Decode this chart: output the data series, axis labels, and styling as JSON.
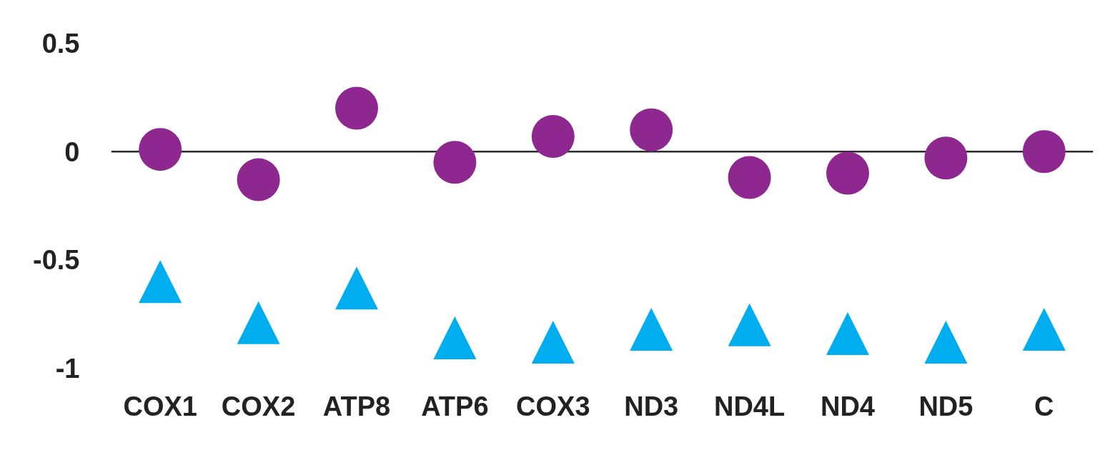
{
  "chart_data": {
    "type": "scatter",
    "categories": [
      "COX1",
      "COX2",
      "ATP8",
      "ATP6",
      "COX3",
      "ND3",
      "ND4L",
      "ND4",
      "ND5",
      "C"
    ],
    "series": [
      {
        "color": "#8e278f",
        "marker": "circle",
        "values": [
          0.01,
          -0.13,
          0.2,
          -0.05,
          0.07,
          0.1,
          -0.12,
          -0.1,
          -0.03,
          0.0
        ]
      },
      {
        "color": "#00aeef",
        "marker": "triangle",
        "values": [
          -0.6,
          -0.79,
          -0.63,
          -0.86,
          -0.88,
          -0.82,
          -0.8,
          -0.84,
          -0.88,
          -0.82
        ]
      }
    ],
    "ylim": [
      -1,
      0.5
    ],
    "yticks": [
      -1,
      -0.5,
      0,
      0.5
    ],
    "ref_lines": [
      {
        "axis": "y",
        "value": 0,
        "color": "#2b2b2b"
      }
    ]
  }
}
